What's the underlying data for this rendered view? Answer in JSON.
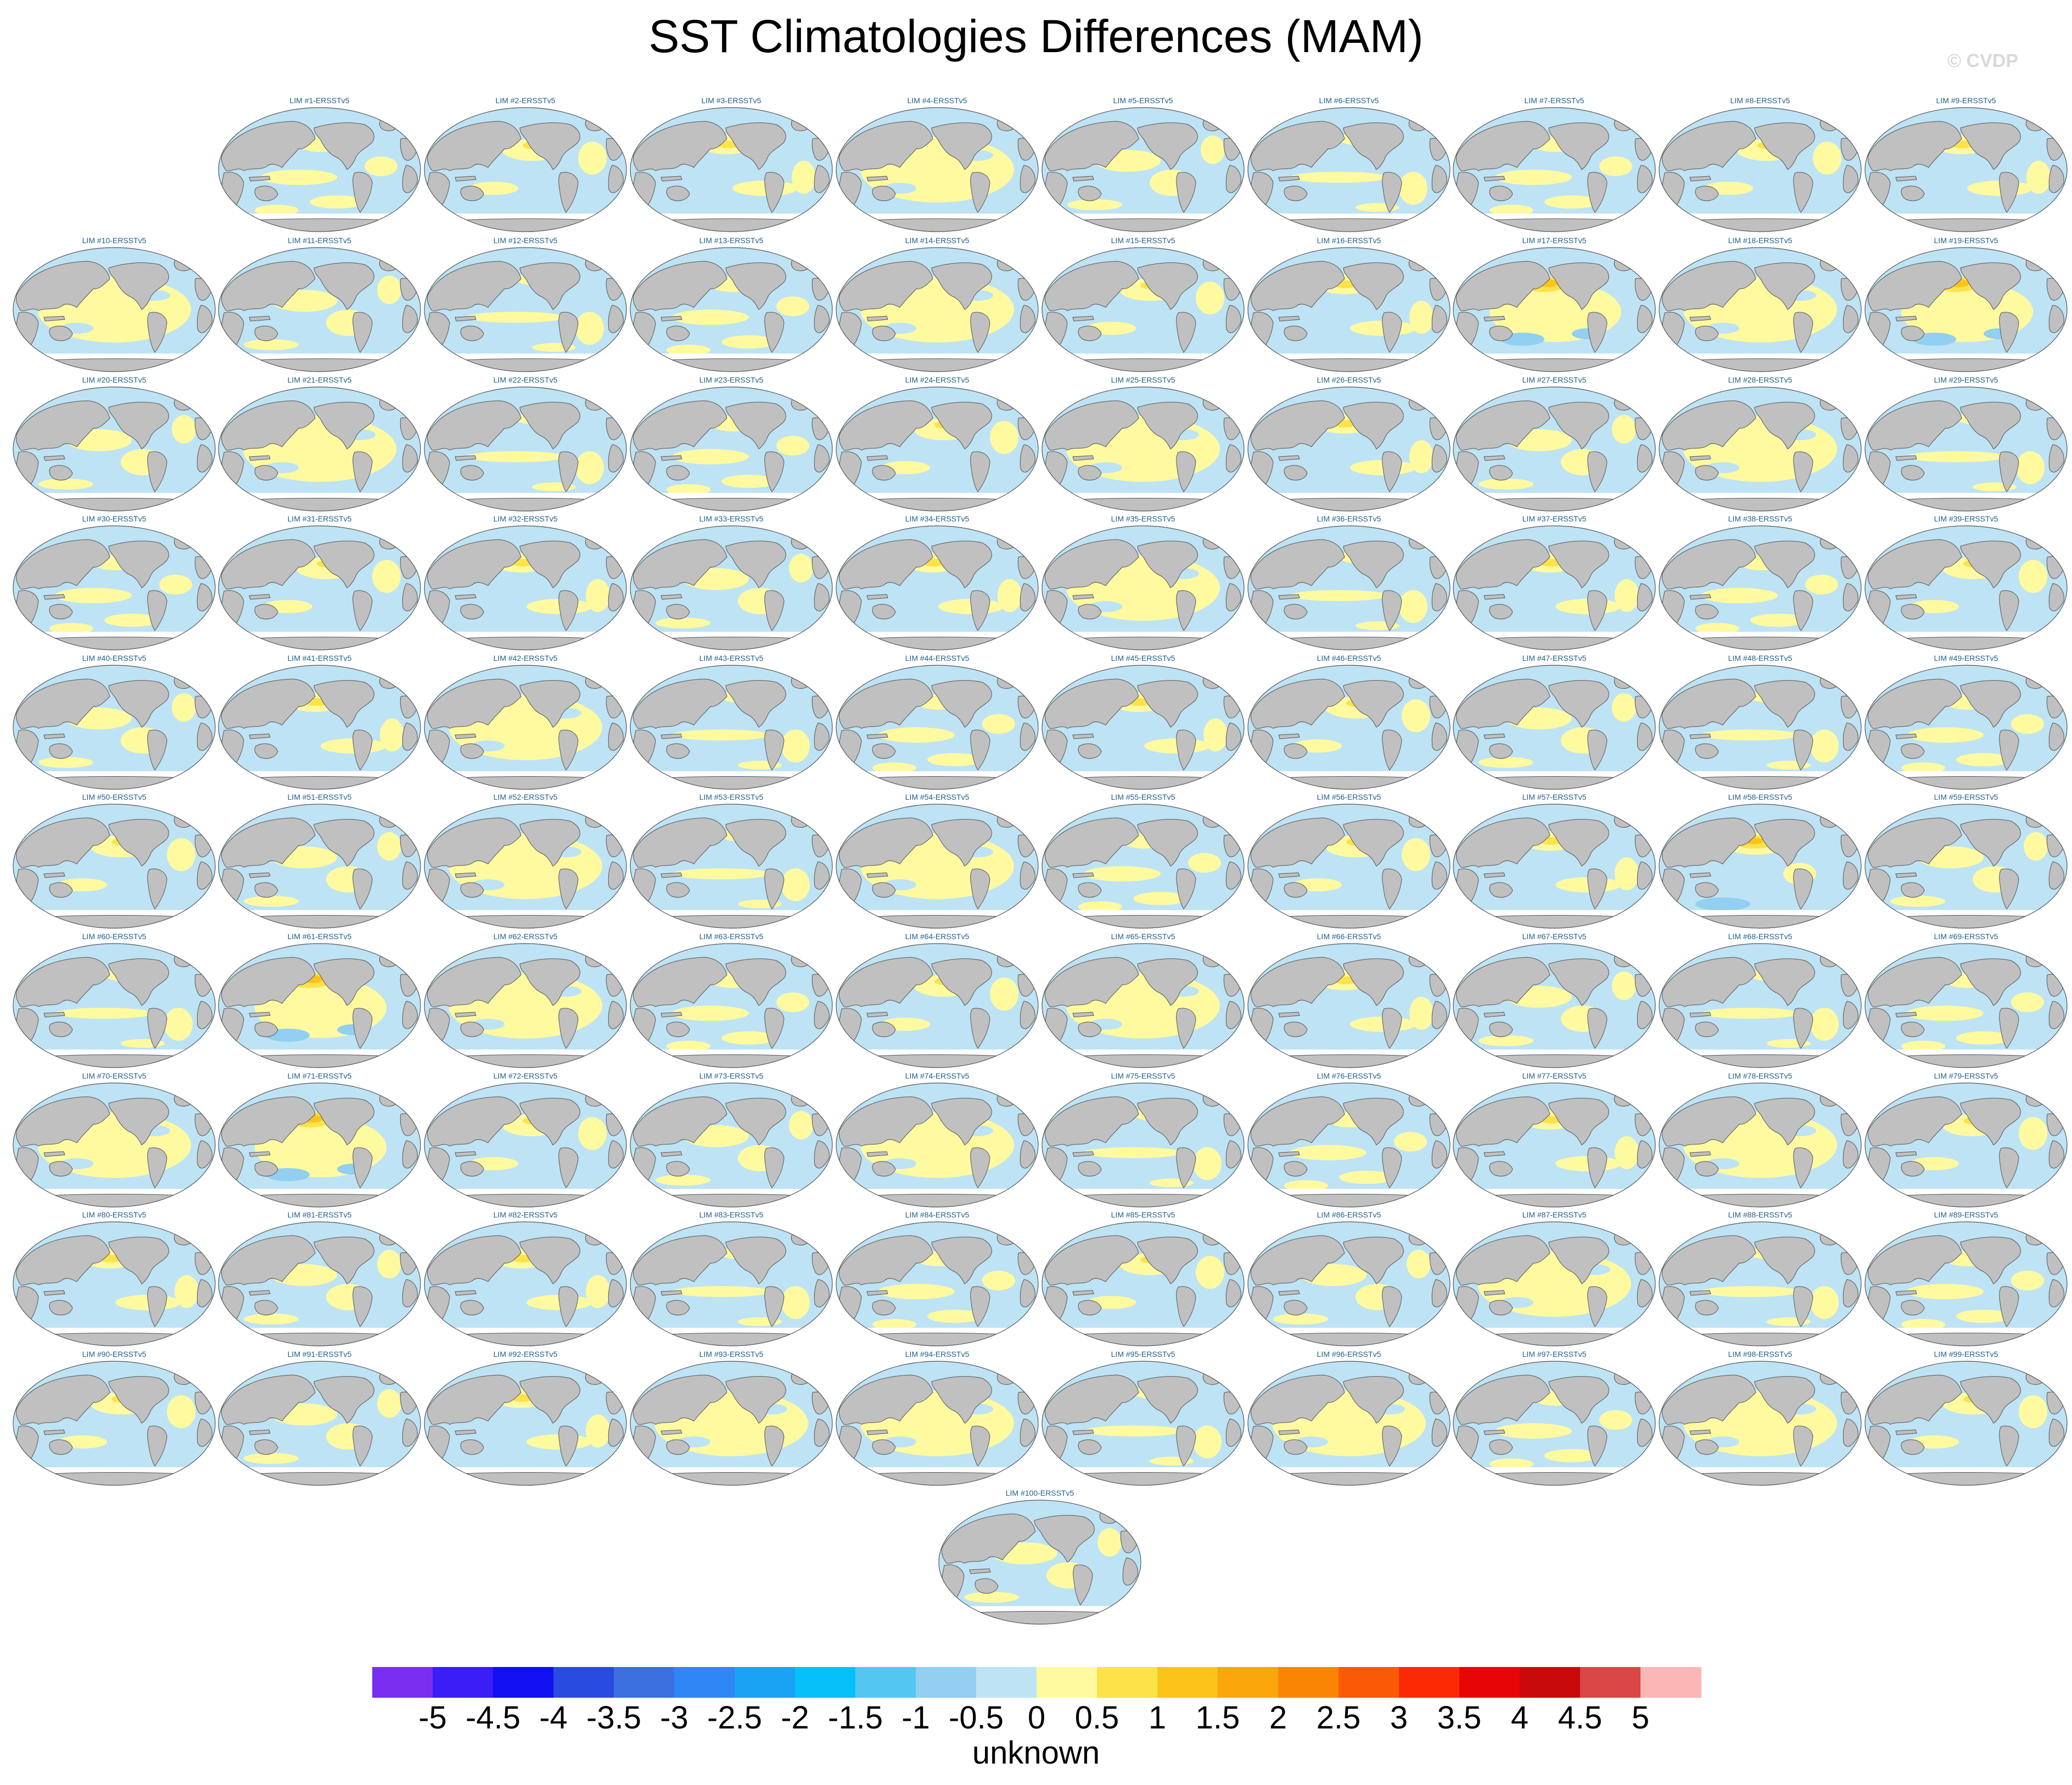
{
  "title": "SST Climatologies Differences (MAM)",
  "watermark": "© CVDP",
  "chart_data": {
    "type": "heatmap",
    "title": "SST Climatologies Differences (MAM)",
    "projection": "global map panels",
    "panels": [
      {
        "label": "LIM #1-ERSSTv5",
        "pattern": 0
      },
      {
        "label": "LIM #2-ERSSTv5",
        "pattern": 1
      },
      {
        "label": "LIM #3-ERSSTv5",
        "pattern": 2
      },
      {
        "label": "LIM #4-ERSSTv5",
        "pattern": 3
      },
      {
        "label": "LIM #5-ERSSTv5",
        "pattern": 4
      },
      {
        "label": "LIM #6-ERSSTv5",
        "pattern": 5
      },
      {
        "label": "LIM #7-ERSSTv5",
        "pattern": 0
      },
      {
        "label": "LIM #8-ERSSTv5",
        "pattern": 1
      },
      {
        "label": "LIM #9-ERSSTv5",
        "pattern": 2
      },
      {
        "label": "LIM #10-ERSSTv5",
        "pattern": 3
      },
      {
        "label": "LIM #11-ERSSTv5",
        "pattern": 4
      },
      {
        "label": "LIM #12-ERSSTv5",
        "pattern": 5
      },
      {
        "label": "LIM #13-ERSSTv5",
        "pattern": 0
      },
      {
        "label": "LIM #14-ERSSTv5",
        "pattern": 3
      },
      {
        "label": "LIM #15-ERSSTv5",
        "pattern": 1
      },
      {
        "label": "LIM #16-ERSSTv5",
        "pattern": 2
      },
      {
        "label": "LIM #17-ERSSTv5",
        "pattern": 6
      },
      {
        "label": "LIM #18-ERSSTv5",
        "pattern": 3
      },
      {
        "label": "LIM #19-ERSSTv5",
        "pattern": 6
      },
      {
        "label": "LIM #20-ERSSTv5",
        "pattern": 4
      },
      {
        "label": "LIM #21-ERSSTv5",
        "pattern": 3
      },
      {
        "label": "LIM #22-ERSSTv5",
        "pattern": 5
      },
      {
        "label": "LIM #23-ERSSTv5",
        "pattern": 0
      },
      {
        "label": "LIM #24-ERSSTv5",
        "pattern": 1
      },
      {
        "label": "LIM #25-ERSSTv5",
        "pattern": 3
      },
      {
        "label": "LIM #26-ERSSTv5",
        "pattern": 2
      },
      {
        "label": "LIM #27-ERSSTv5",
        "pattern": 4
      },
      {
        "label": "LIM #28-ERSSTv5",
        "pattern": 3
      },
      {
        "label": "LIM #29-ERSSTv5",
        "pattern": 5
      },
      {
        "label": "LIM #30-ERSSTv5",
        "pattern": 0
      },
      {
        "label": "LIM #31-ERSSTv5",
        "pattern": 1
      },
      {
        "label": "LIM #32-ERSSTv5",
        "pattern": 2
      },
      {
        "label": "LIM #33-ERSSTv5",
        "pattern": 4
      },
      {
        "label": "LIM #34-ERSSTv5",
        "pattern": 2
      },
      {
        "label": "LIM #35-ERSSTv5",
        "pattern": 3
      },
      {
        "label": "LIM #36-ERSSTv5",
        "pattern": 5
      },
      {
        "label": "LIM #37-ERSSTv5",
        "pattern": 2
      },
      {
        "label": "LIM #38-ERSSTv5",
        "pattern": 0
      },
      {
        "label": "LIM #39-ERSSTv5",
        "pattern": 1
      },
      {
        "label": "LIM #40-ERSSTv5",
        "pattern": 4
      },
      {
        "label": "LIM #41-ERSSTv5",
        "pattern": 2
      },
      {
        "label": "LIM #42-ERSSTv5",
        "pattern": 3
      },
      {
        "label": "LIM #43-ERSSTv5",
        "pattern": 5
      },
      {
        "label": "LIM #44-ERSSTv5",
        "pattern": 0
      },
      {
        "label": "LIM #45-ERSSTv5",
        "pattern": 2
      },
      {
        "label": "LIM #46-ERSSTv5",
        "pattern": 1
      },
      {
        "label": "LIM #47-ERSSTv5",
        "pattern": 4
      },
      {
        "label": "LIM #48-ERSSTv5",
        "pattern": 5
      },
      {
        "label": "LIM #49-ERSSTv5",
        "pattern": 0
      },
      {
        "label": "LIM #50-ERSSTv5",
        "pattern": 1
      },
      {
        "label": "LIM #51-ERSSTv5",
        "pattern": 4
      },
      {
        "label": "LIM #52-ERSSTv5",
        "pattern": 3
      },
      {
        "label": "LIM #53-ERSSTv5",
        "pattern": 5
      },
      {
        "label": "LIM #54-ERSSTv5",
        "pattern": 3
      },
      {
        "label": "LIM #55-ERSSTv5",
        "pattern": 0
      },
      {
        "label": "LIM #56-ERSSTv5",
        "pattern": 1
      },
      {
        "label": "LIM #57-ERSSTv5",
        "pattern": 2
      },
      {
        "label": "LIM #58-ERSSTv5",
        "pattern": 7
      },
      {
        "label": "LIM #59-ERSSTv5",
        "pattern": 4
      },
      {
        "label": "LIM #60-ERSSTv5",
        "pattern": 5
      },
      {
        "label": "LIM #61-ERSSTv5",
        "pattern": 6
      },
      {
        "label": "LIM #62-ERSSTv5",
        "pattern": 3
      },
      {
        "label": "LIM #63-ERSSTv5",
        "pattern": 0
      },
      {
        "label": "LIM #64-ERSSTv5",
        "pattern": 1
      },
      {
        "label": "LIM #65-ERSSTv5",
        "pattern": 3
      },
      {
        "label": "LIM #66-ERSSTv5",
        "pattern": 2
      },
      {
        "label": "LIM #67-ERSSTv5",
        "pattern": 4
      },
      {
        "label": "LIM #68-ERSSTv5",
        "pattern": 5
      },
      {
        "label": "LIM #69-ERSSTv5",
        "pattern": 0
      },
      {
        "label": "LIM #70-ERSSTv5",
        "pattern": 3
      },
      {
        "label": "LIM #71-ERSSTv5",
        "pattern": 6
      },
      {
        "label": "LIM #72-ERSSTv5",
        "pattern": 1
      },
      {
        "label": "LIM #73-ERSSTv5",
        "pattern": 4
      },
      {
        "label": "LIM #74-ERSSTv5",
        "pattern": 3
      },
      {
        "label": "LIM #75-ERSSTv5",
        "pattern": 5
      },
      {
        "label": "LIM #76-ERSSTv5",
        "pattern": 0
      },
      {
        "label": "LIM #77-ERSSTv5",
        "pattern": 2
      },
      {
        "label": "LIM #78-ERSSTv5",
        "pattern": 3
      },
      {
        "label": "LIM #79-ERSSTv5",
        "pattern": 1
      },
      {
        "label": "LIM #80-ERSSTv5",
        "pattern": 2
      },
      {
        "label": "LIM #81-ERSSTv5",
        "pattern": 4
      },
      {
        "label": "LIM #82-ERSSTv5",
        "pattern": 2
      },
      {
        "label": "LIM #83-ERSSTv5",
        "pattern": 5
      },
      {
        "label": "LIM #84-ERSSTv5",
        "pattern": 0
      },
      {
        "label": "LIM #85-ERSSTv5",
        "pattern": 1
      },
      {
        "label": "LIM #86-ERSSTv5",
        "pattern": 4
      },
      {
        "label": "LIM #87-ERSSTv5",
        "pattern": 3
      },
      {
        "label": "LIM #88-ERSSTv5",
        "pattern": 5
      },
      {
        "label": "LIM #89-ERSSTv5",
        "pattern": 0
      },
      {
        "label": "LIM #90-ERSSTv5",
        "pattern": 1
      },
      {
        "label": "LIM #91-ERSSTv5",
        "pattern": 4
      },
      {
        "label": "LIM #92-ERSSTv5",
        "pattern": 2
      },
      {
        "label": "LIM #93-ERSSTv5",
        "pattern": 3
      },
      {
        "label": "LIM #94-ERSSTv5",
        "pattern": 3
      },
      {
        "label": "LIM #95-ERSSTv5",
        "pattern": 5
      },
      {
        "label": "LIM #96-ERSSTv5",
        "pattern": 3
      },
      {
        "label": "LIM #97-ERSSTv5",
        "pattern": 0
      },
      {
        "label": "LIM #98-ERSSTv5",
        "pattern": 3
      },
      {
        "label": "LIM #99-ERSSTv5",
        "pattern": 1
      },
      {
        "label": "LIM #100-ERSSTv5",
        "pattern": 4
      }
    ],
    "colorbar": {
      "levels": [
        "-5",
        "-4.5",
        "-4",
        "-3.5",
        "-3",
        "-2.5",
        "-2",
        "-1.5",
        "-1",
        "-0.5",
        "0",
        "0.5",
        "1",
        "1.5",
        "2",
        "2.5",
        "3",
        "3.5",
        "4",
        "4.5",
        "5"
      ],
      "colors": [
        "#7a2ff0",
        "#3a1ef5",
        "#1010f0",
        "#2a4be0",
        "#3c6fe0",
        "#2f86f5",
        "#1aa2f5",
        "#06c0fa",
        "#54c6f2",
        "#92cff0",
        "#bde3f5",
        "#fffaa0",
        "#fde24a",
        "#fcc41a",
        "#fba60a",
        "#fa8505",
        "#fa5a05",
        "#fa2a05",
        "#e80505",
        "#c80a0a",
        "#db4646",
        "#fdb6b6"
      ],
      "units_label": "unknown"
    },
    "palette": {
      "ocean_negative": "#bde3f5",
      "ocean_positive": "#fffaa0",
      "warm_1": "#fde24a",
      "warm_2": "#fcc41a",
      "cold_1": "#92cff0",
      "land": "#c0c0c0",
      "outline": "#555555"
    }
  }
}
